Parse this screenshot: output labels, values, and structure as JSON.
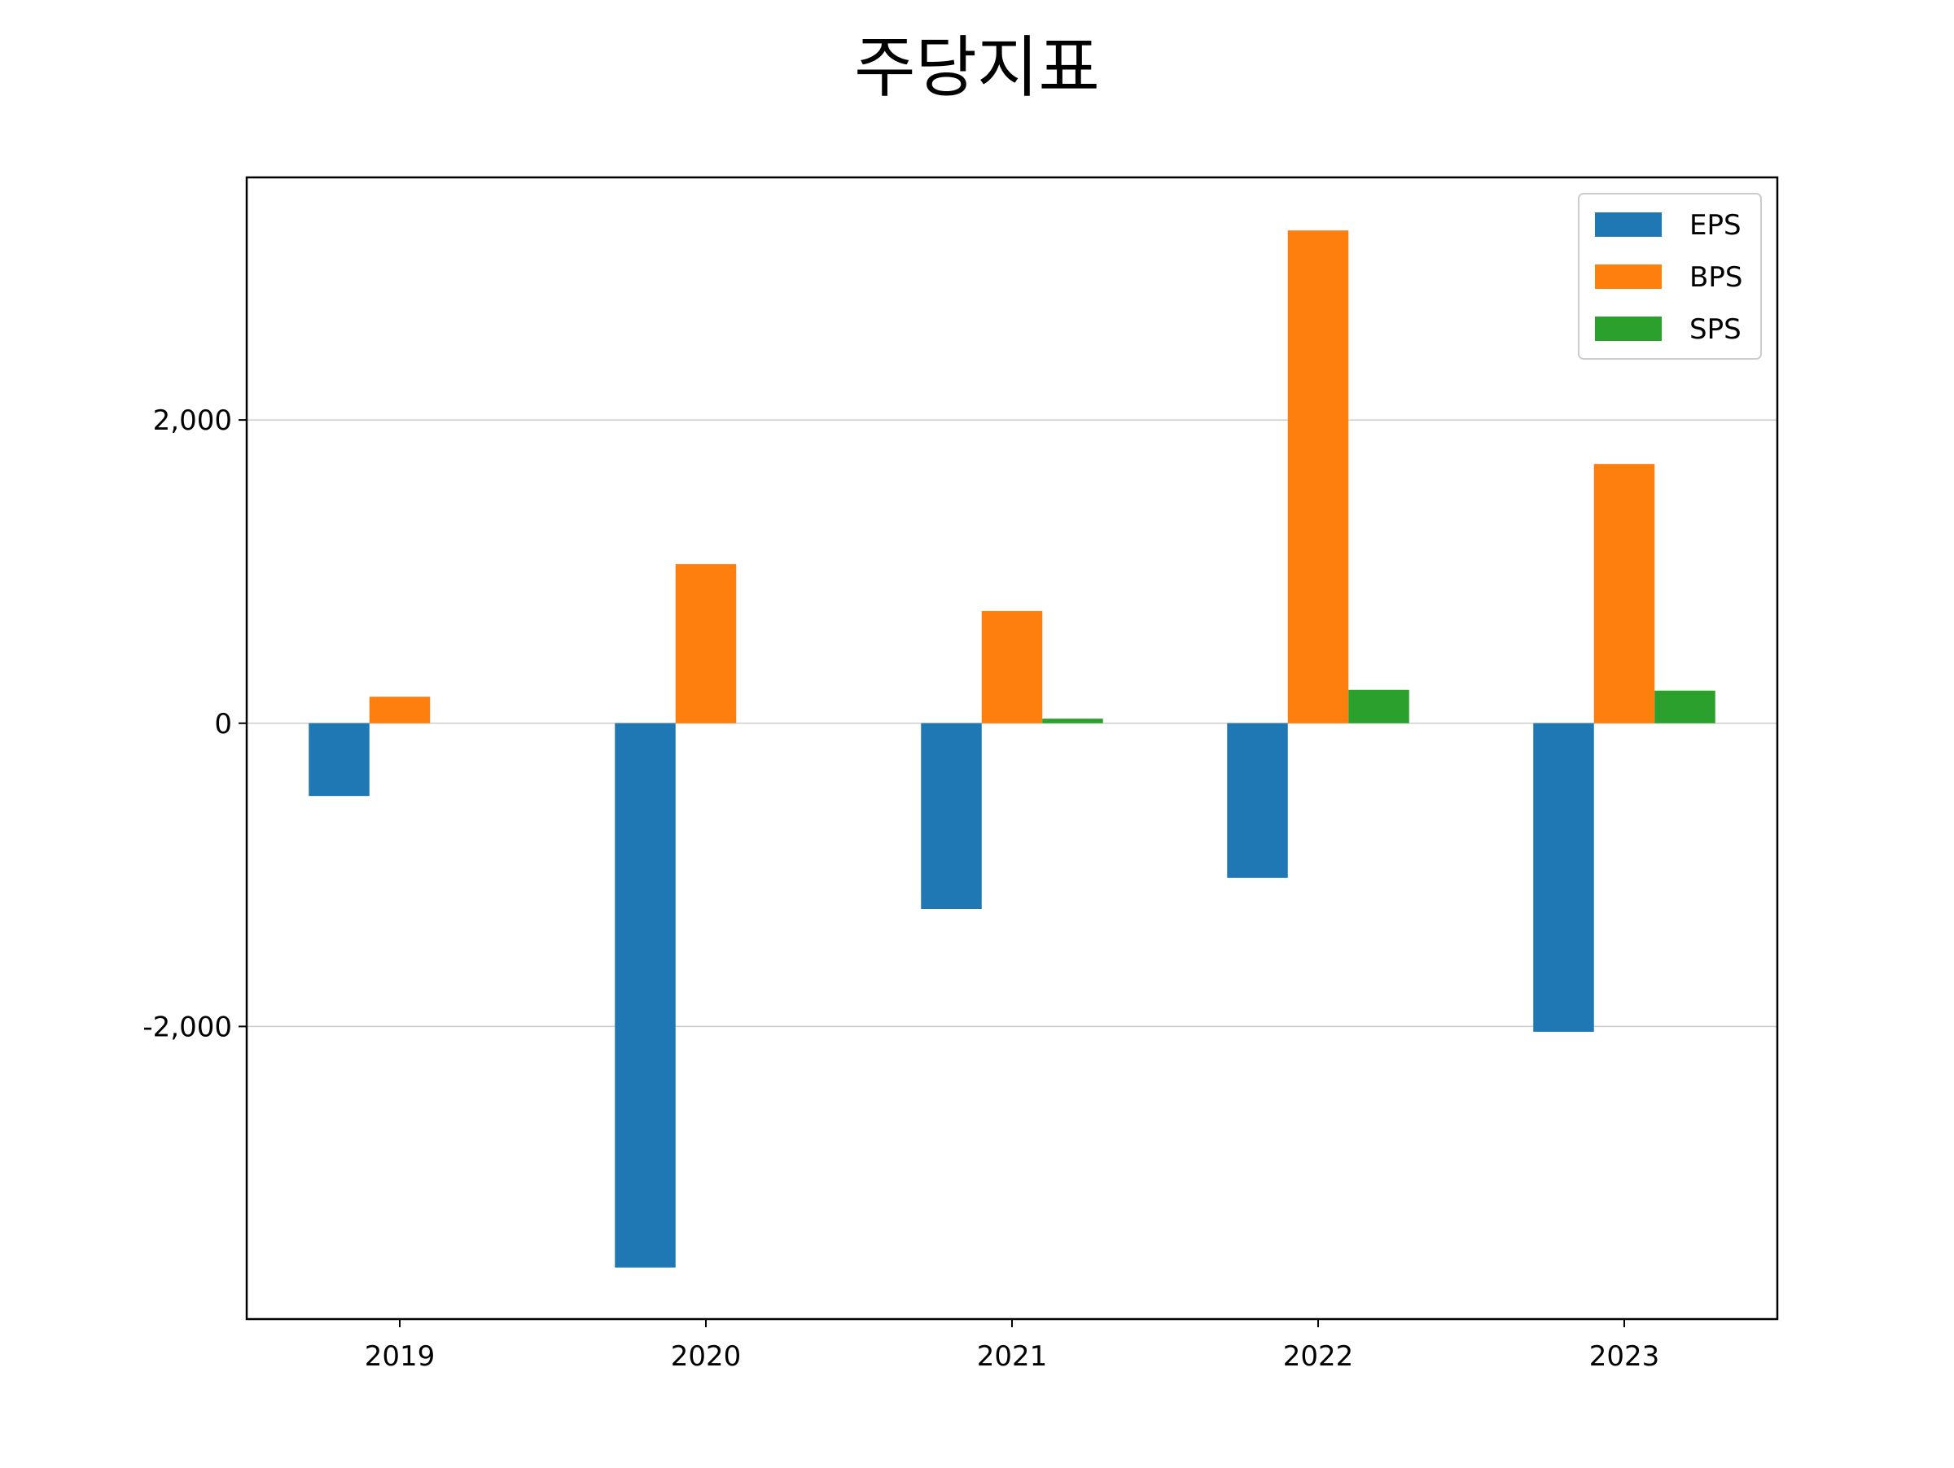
{
  "chart_data": {
    "type": "bar",
    "title": "주당지표",
    "categories": [
      "2019",
      "2020",
      "2021",
      "2022",
      "2023"
    ],
    "series": [
      {
        "name": "EPS",
        "color": "#1f77b4",
        "values": [
          -480,
          -3590,
          -1225,
          -1020,
          -2035
        ]
      },
      {
        "name": "BPS",
        "color": "#ff7f0e",
        "values": [
          175,
          1050,
          740,
          3250,
          1710
        ]
      },
      {
        "name": "SPS",
        "color": "#2ca02c",
        "values": [
          0,
          0,
          30,
          220,
          215
        ]
      }
    ],
    "yticks": [
      -2000,
      0,
      2000
    ],
    "ytick_labels": [
      "-2,000",
      "0",
      "2,000"
    ],
    "ylim": [
      -3930,
      3600
    ],
    "grid": "horizontal",
    "legend_position": "top-right",
    "xlabel": "",
    "ylabel": ""
  }
}
